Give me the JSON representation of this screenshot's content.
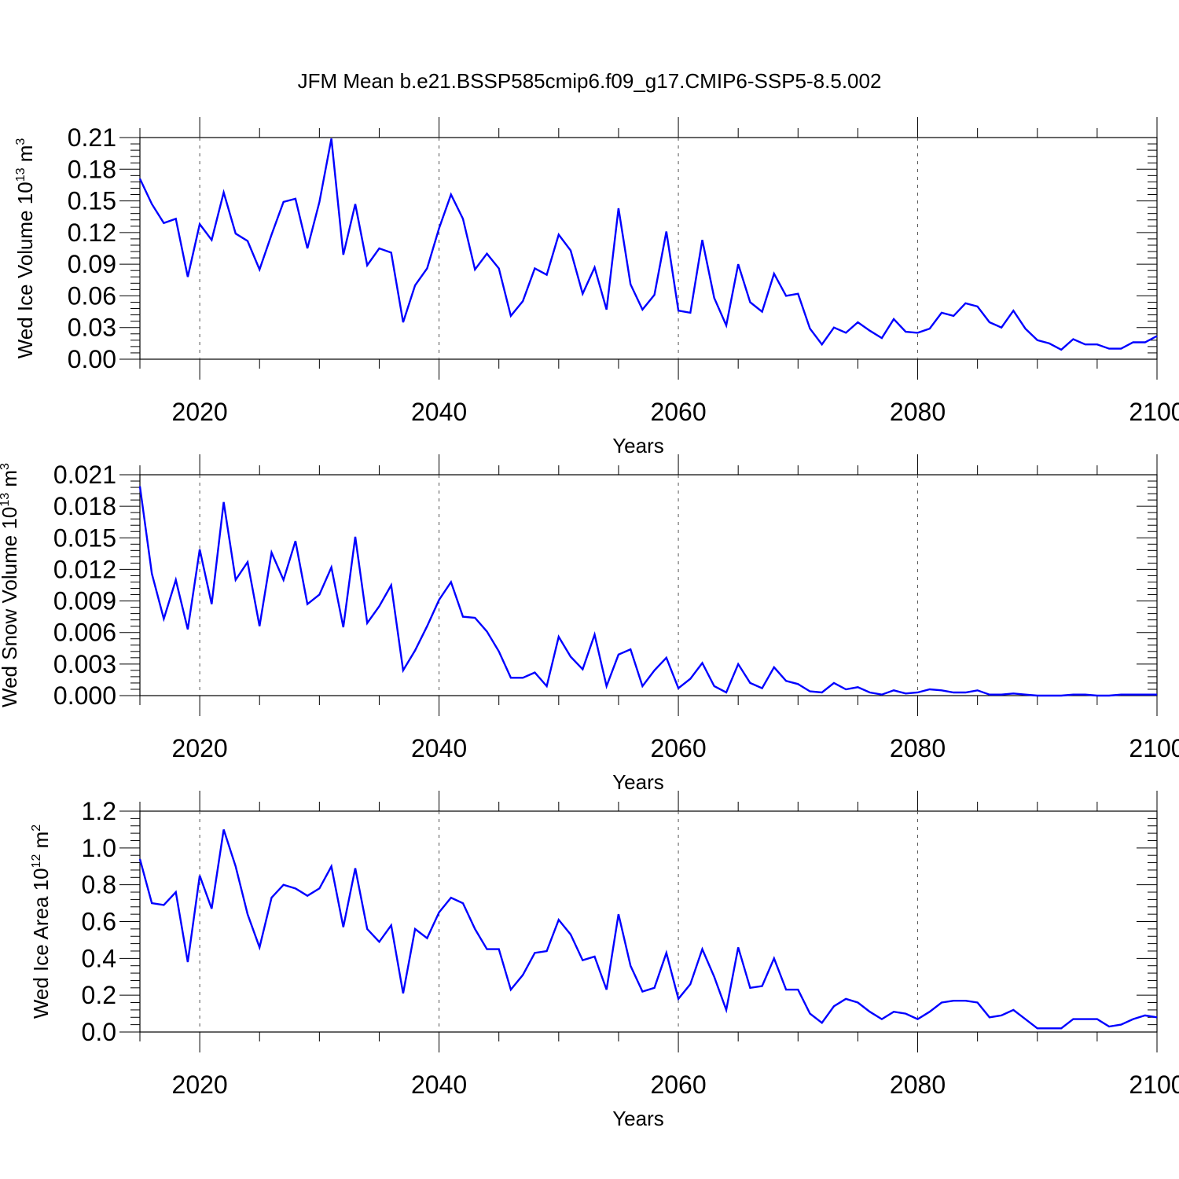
{
  "title": "JFM Mean b.e21.BSSP585cmip6.f09_g17.CMIP6-SSP5-8.5.002",
  "line_color": "#0000ff",
  "chart_data": [
    {
      "type": "line",
      "ylabel_main": "Wed Ice Volume 10",
      "ylabel_exp": "13",
      "ylabel_unit": " m",
      "ylabel_unit_exp": "3",
      "xlabel": "Years",
      "xlim": [
        2015,
        2100
      ],
      "ylim": [
        0,
        0.21
      ],
      "x_ticks": [
        "2020",
        "2040",
        "2060",
        "2080",
        "2100"
      ],
      "y_ticks": [
        "0.00",
        "0.03",
        "0.06",
        "0.09",
        "0.12",
        "0.15",
        "0.18",
        "0.21"
      ],
      "grid": "dashed vertical lines at major x ticks",
      "x_start": 2015,
      "values": [
        0.171,
        0.147,
        0.129,
        0.133,
        0.078,
        0.128,
        0.113,
        0.158,
        0.119,
        0.112,
        0.085,
        0.118,
        0.149,
        0.152,
        0.105,
        0.149,
        0.209,
        0.099,
        0.147,
        0.089,
        0.105,
        0.101,
        0.035,
        0.07,
        0.086,
        0.124,
        0.156,
        0.133,
        0.085,
        0.1,
        0.086,
        0.041,
        0.055,
        0.086,
        0.08,
        0.118,
        0.103,
        0.062,
        0.087,
        0.047,
        0.143,
        0.071,
        0.047,
        0.061,
        0.121,
        0.046,
        0.044,
        0.113,
        0.058,
        0.032,
        0.09,
        0.054,
        0.045,
        0.081,
        0.06,
        0.062,
        0.029,
        0.014,
        0.03,
        0.025,
        0.035,
        0.027,
        0.02,
        0.038,
        0.026,
        0.025,
        0.029,
        0.044,
        0.041,
        0.053,
        0.05,
        0.035,
        0.03,
        0.046,
        0.029,
        0.018,
        0.015,
        0.009,
        0.019,
        0.014,
        0.014,
        0.01,
        0.01,
        0.016,
        0.016,
        0.022
      ]
    },
    {
      "type": "line",
      "ylabel_main": "Wed Snow Volume 10",
      "ylabel_exp": "13",
      "ylabel_unit": " m",
      "ylabel_unit_exp": "3",
      "xlabel": "Years",
      "xlim": [
        2015,
        2100
      ],
      "ylim": [
        0,
        0.021
      ],
      "x_ticks": [
        "2020",
        "2040",
        "2060",
        "2080",
        "2100"
      ],
      "y_ticks": [
        "0.000",
        "0.003",
        "0.006",
        "0.009",
        "0.012",
        "0.015",
        "0.018",
        "0.021"
      ],
      "grid": "dashed vertical lines at major x ticks",
      "x_start": 2015,
      "values": [
        0.0199,
        0.0116,
        0.0073,
        0.011,
        0.0063,
        0.0139,
        0.0087,
        0.0184,
        0.011,
        0.0127,
        0.0066,
        0.0136,
        0.011,
        0.0147,
        0.0087,
        0.0096,
        0.0122,
        0.0065,
        0.0151,
        0.0069,
        0.0085,
        0.0105,
        0.0024,
        0.0043,
        0.0066,
        0.0091,
        0.0108,
        0.0075,
        0.0074,
        0.0061,
        0.0042,
        0.0017,
        0.0017,
        0.0022,
        0.0009,
        0.0056,
        0.0037,
        0.0025,
        0.0058,
        0.0009,
        0.0039,
        0.0044,
        0.0009,
        0.0024,
        0.0036,
        0.0007,
        0.0016,
        0.0031,
        0.0009,
        0.0003,
        0.003,
        0.0012,
        0.0007,
        0.0027,
        0.0014,
        0.0011,
        0.0004,
        0.0003,
        0.0012,
        0.0006,
        0.0008,
        0.0003,
        0.0001,
        0.0005,
        0.0002,
        0.0003,
        0.0006,
        0.0005,
        0.0003,
        0.0003,
        0.0005,
        0.0001,
        0.0001,
        0.0002,
        0.0001,
        0.0,
        0.0,
        0.0,
        0.0001,
        0.0001,
        0.0,
        0.0,
        0.0001,
        0.0001,
        0.0001,
        0.0001
      ]
    },
    {
      "type": "line",
      "ylabel_main": "Wed Ice Area 10",
      "ylabel_exp": "12",
      "ylabel_unit": " m",
      "ylabel_unit_exp": "2",
      "xlabel": "Years",
      "xlim": [
        2015,
        2100
      ],
      "ylim": [
        0,
        1.2
      ],
      "x_ticks": [
        "2020",
        "2040",
        "2060",
        "2080",
        "2100"
      ],
      "y_ticks": [
        "0.0",
        "0.2",
        "0.4",
        "0.6",
        "0.8",
        "1.0",
        "1.2"
      ],
      "grid": "dashed vertical lines at major x ticks",
      "x_start": 2015,
      "values": [
        0.94,
        0.7,
        0.69,
        0.76,
        0.38,
        0.85,
        0.67,
        1.1,
        0.9,
        0.64,
        0.46,
        0.73,
        0.8,
        0.78,
        0.74,
        0.78,
        0.9,
        0.57,
        0.89,
        0.56,
        0.49,
        0.58,
        0.21,
        0.56,
        0.51,
        0.65,
        0.73,
        0.7,
        0.56,
        0.45,
        0.45,
        0.23,
        0.31,
        0.43,
        0.44,
        0.61,
        0.53,
        0.39,
        0.41,
        0.23,
        0.64,
        0.36,
        0.22,
        0.24,
        0.43,
        0.18,
        0.26,
        0.45,
        0.3,
        0.12,
        0.46,
        0.24,
        0.25,
        0.4,
        0.23,
        0.23,
        0.1,
        0.05,
        0.14,
        0.18,
        0.16,
        0.11,
        0.07,
        0.11,
        0.1,
        0.07,
        0.11,
        0.16,
        0.17,
        0.17,
        0.16,
        0.08,
        0.09,
        0.12,
        0.07,
        0.02,
        0.02,
        0.02,
        0.07,
        0.07,
        0.07,
        0.03,
        0.04,
        0.07,
        0.09,
        0.08
      ]
    }
  ]
}
